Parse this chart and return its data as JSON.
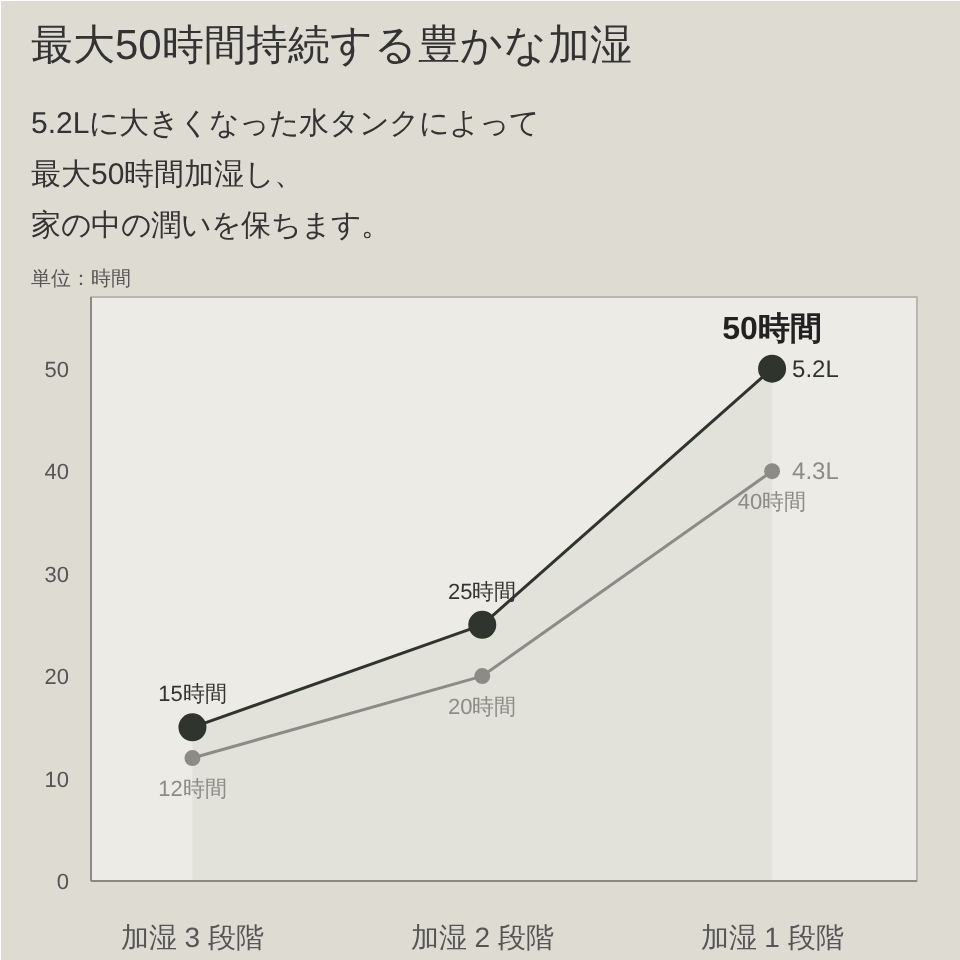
{
  "chart_data": {
    "type": "line",
    "title": "最大50時間持続する豊かな加湿",
    "subtitle": "5.2Lに大きくなった水タンクによって最大50時間加湿し、家の中の潤いを保ちます。",
    "ylabel": "単位：時間",
    "categories": [
      "加湿 3 段階",
      "加湿 2 段階",
      "加湿 1 段階"
    ],
    "ylim": [
      0,
      57
    ],
    "yticks": [
      0,
      10,
      20,
      30,
      40,
      50
    ],
    "grid": false,
    "marker": "circle",
    "line_style": "solid",
    "series": [
      {
        "name": "5.2L",
        "type": "area",
        "color": "#30342f",
        "values": [
          15,
          25,
          50
        ],
        "value_labels": [
          "15時間",
          "25時間",
          "50時間"
        ]
      },
      {
        "name": "4.3L",
        "type": "line",
        "color": "#8c8b85",
        "values": [
          12,
          20,
          40
        ],
        "value_labels": [
          "12時間",
          "20時間",
          "40時間"
        ]
      }
    ]
  }
}
